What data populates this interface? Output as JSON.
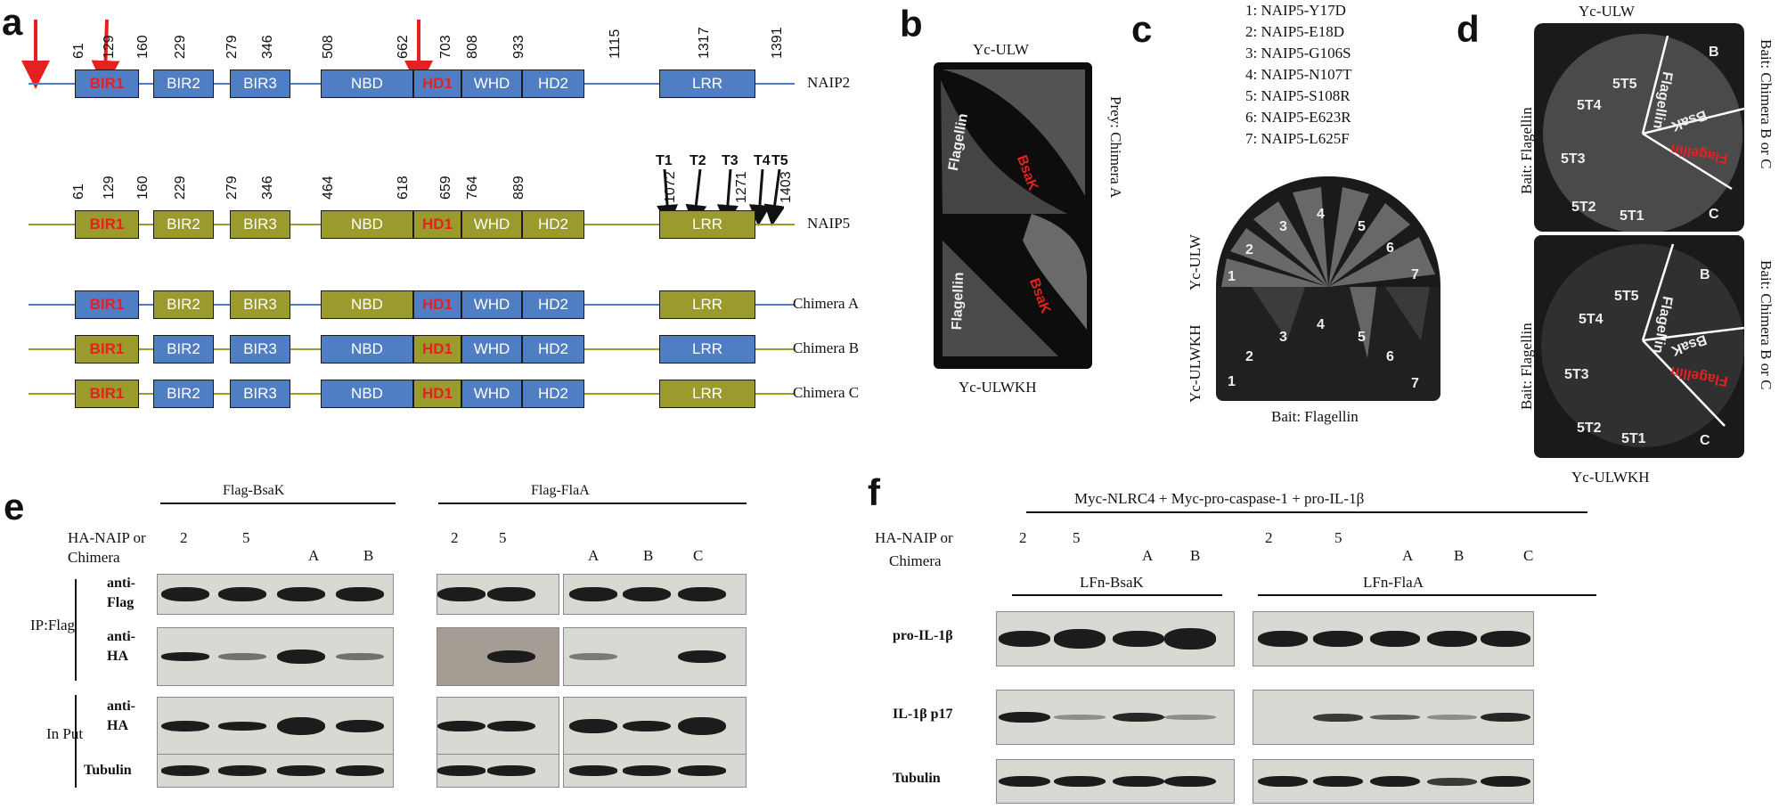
{
  "panels": {
    "a": "a",
    "b": "b",
    "c": "c",
    "d": "d",
    "e": "e",
    "f": "f"
  },
  "panel_a": {
    "naip2_numbers": [
      "61",
      "129",
      "160",
      "229",
      "279",
      "346",
      "508",
      "662",
      "703",
      "808",
      "933",
      "1115",
      "1317",
      "1391"
    ],
    "naip5_numbers": [
      "61",
      "129",
      "160",
      "229",
      "279",
      "346",
      "464",
      "618",
      "659",
      "764",
      "889",
      "1072",
      "1271",
      "1403"
    ],
    "domains": {
      "bir1": "BIR1",
      "bir2": "BIR2",
      "bir3": "BIR3",
      "nbd": "NBD",
      "hd1": "HD1",
      "whd": "WHD",
      "hd2": "HD2",
      "lrr": "LRR"
    },
    "rows": [
      "NAIP2",
      "NAIP5",
      "Chimera A",
      "Chimera B",
      "Chimera C"
    ],
    "truncations": [
      "T1",
      "T2",
      "T3",
      "T4",
      "T5"
    ],
    "colors": {
      "naip2": "#4f7ec4",
      "naip5": "#9a9a2d",
      "highlight": "#e62020"
    }
  },
  "panel_b": {
    "top": "Yc-ULW",
    "bottom": "Yc-ULWKH",
    "side": "Prey:  Chimera A",
    "labels": {
      "flagellin": "Flagellin",
      "bsak": "BsaK"
    }
  },
  "panel_c": {
    "mutants": [
      "1:   NAIP5-Y17D",
      "2:   NAIP5-E18D",
      "3:   NAIP5-G106S",
      "4:   NAIP5-N107T",
      "5:   NAIP5-S108R",
      "6:   NAIP5-E623R",
      "7:   NAIP5-L625F"
    ],
    "plate_top": "Yc-ULW",
    "plate_bottom": "Yc-ULWKH",
    "bait": "Bait: Flagellin",
    "sectors": [
      "1",
      "2",
      "3",
      "4",
      "5",
      "6",
      "7"
    ]
  },
  "panel_d": {
    "top": "Yc-ULW",
    "bottom": "Yc-ULWKH",
    "bait_left": "Bait: Flagellin",
    "bait_right": "Bait: Chimera B or C",
    "sectors": [
      "5T5",
      "5T4",
      "5T3",
      "5T2",
      "5T1"
    ],
    "right_labels": {
      "flagellin": "Flagellin",
      "bsak": "BsaK",
      "flag_red": "Flagellin",
      "b": "B",
      "c": "C"
    }
  },
  "panel_e": {
    "group1": "Flag-BsaK",
    "group2": "Flag-FlaA",
    "row_header": "HA-NAIP or",
    "row_header2": "Chimera",
    "lanes1": [
      "2",
      "5",
      "A",
      "B"
    ],
    "lanes2": [
      "2",
      "5",
      "A",
      "B",
      "C"
    ],
    "ip_label": "IP:Flag",
    "input_label": "In Put",
    "blots": [
      "anti-\nFlag",
      "anti-\nHA",
      "anti-\nHA",
      "Tubulin"
    ]
  },
  "panel_f": {
    "header": "Myc-NLRC4 + Myc-pro-caspase-1 + pro-IL-1β",
    "row_header": "HA-NAIP or",
    "row_header2": "Chimera",
    "lanes1": [
      "2",
      "5",
      "A",
      "B"
    ],
    "lanes2": [
      "2",
      "5",
      "A",
      "B",
      "C"
    ],
    "group1": "LFn-BsaK",
    "group2": "LFn-FlaA",
    "blots": [
      "pro-IL-1β",
      "IL-1β p17",
      "Tubulin"
    ]
  }
}
